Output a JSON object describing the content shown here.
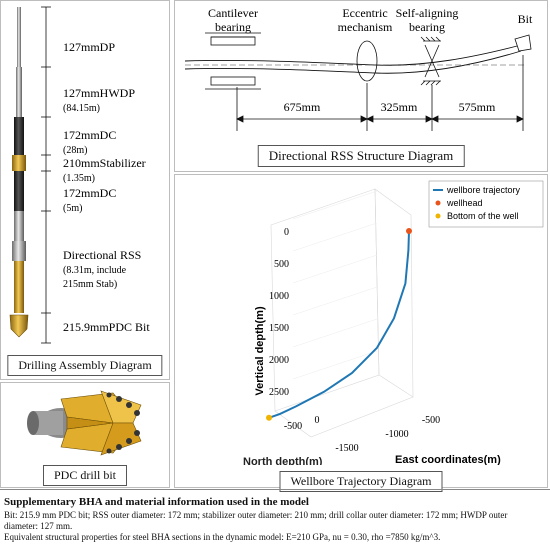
{
  "bha": {
    "labels": [
      {
        "name": "127mmDP",
        "sub": ""
      },
      {
        "name": "127mmHWDP",
        "sub": "(84.15m)"
      },
      {
        "name": "172mmDC",
        "sub": "(28m)"
      },
      {
        "name": "210mmStabilizer",
        "sub": "(1.35m)"
      },
      {
        "name": "172mmDC",
        "sub": "(5m)"
      },
      {
        "name": "Directional RSS",
        "sub": "(8.31m, include",
        "sub2": "215mm Stab)"
      },
      {
        "name": "215.9mmPDC Bit",
        "sub": ""
      }
    ],
    "caption": "Drilling Assembly Diagram"
  },
  "pdc": {
    "caption": "PDC drill bit"
  },
  "rss": {
    "labels": {
      "cantilever": [
        "Cantilever",
        "bearing"
      ],
      "eccentric": [
        "Eccentric",
        "mechanism"
      ],
      "self_aligning": [
        "Self-aligning",
        "bearing"
      ],
      "bit": "Bit"
    },
    "dimensions": [
      "675mm",
      "325mm",
      "575mm"
    ],
    "caption": "Directional RSS Structure Diagram"
  },
  "trajectory": {
    "legend": [
      "wellbore trajectory",
      "wellhead",
      "Bottom of the well"
    ],
    "z_label": "Vertical depth(m)",
    "x_label": "North depth(m)",
    "y_label": "East coordinates(m)",
    "z_ticks": [
      "0",
      "500",
      "1000",
      "1500",
      "2000",
      "2500"
    ],
    "north_ticks": [
      "-500",
      "0"
    ],
    "east_ticks": [
      "-1500",
      "-1000",
      "-500"
    ],
    "caption": "Wellbore Trajectory Diagram",
    "colors": {
      "line": "#1f77b4",
      "wellhead": "#e8541b",
      "bottom": "#f0b400"
    }
  },
  "chart_data": {
    "type": "line",
    "title": "",
    "series": [
      {
        "name": "wellbore trajectory",
        "north": [
          0,
          0,
          0,
          -30,
          -80,
          -150,
          -250,
          -380,
          -450,
          -500
        ],
        "east": [
          0,
          -10,
          -60,
          -200,
          -400,
          -700,
          -1000,
          -1250,
          -1400,
          -1500
        ],
        "depth": [
          0,
          300,
          800,
          1300,
          1700,
          2000,
          2200,
          2350,
          2420,
          2450
        ]
      }
    ],
    "markers": [
      {
        "name": "wellhead",
        "north": 0,
        "east": 0,
        "depth": 0
      },
      {
        "name": "Bottom of the well",
        "north": -500,
        "east": -1500,
        "depth": 2450
      }
    ]
  },
  "info": {
    "title": "Supplementary BHA and material information used in the model",
    "line1": "Bit: 215.9 mm PDC bit; RSS outer diameter: 172 mm; stabilizer outer diameter: 210 mm; drill collar outer diameter: 172 mm; HWDP outer",
    "line2": "diameter: 127 mm.",
    "line3": "Equivalent structural properties for steel BHA sections in the dynamic model: E=210 GPa, nu = 0.30, rho =7850 kg/m^3."
  }
}
